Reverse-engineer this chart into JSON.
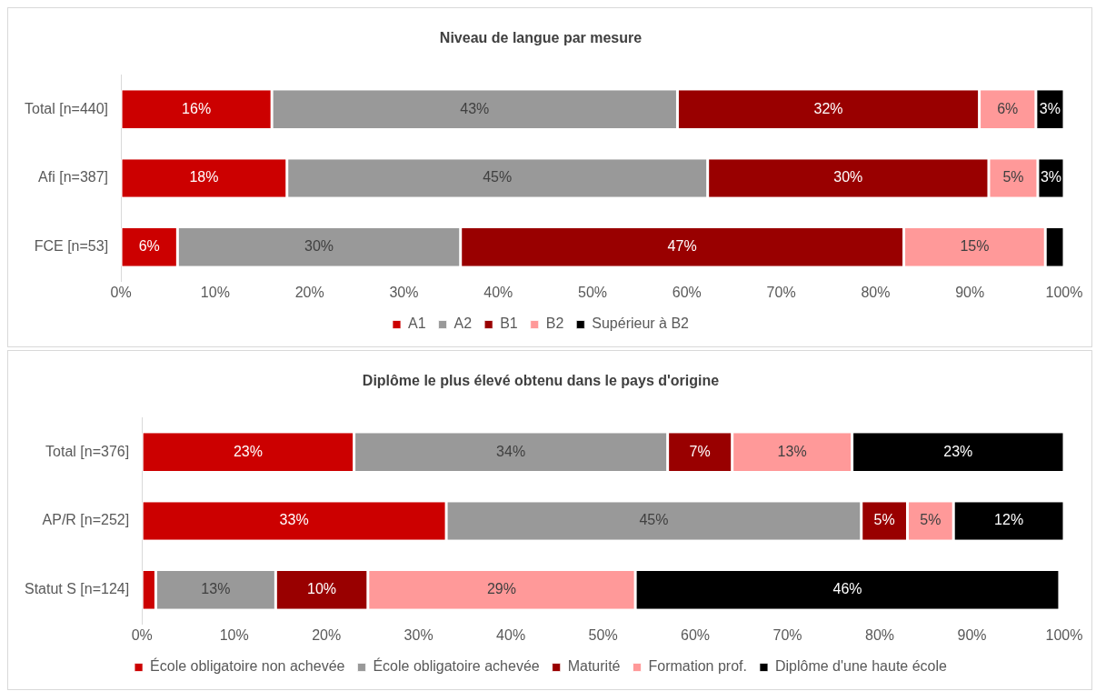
{
  "chart_data": [
    {
      "type": "bar",
      "orientation": "horizontal",
      "stacked": true,
      "title": "Niveau de langue par mesure",
      "categories": [
        "Total [n=440]",
        "Afi [n=387]",
        "FCE [n=53]"
      ],
      "xlim": [
        0,
        100
      ],
      "xticks": [
        {
          "value": 0,
          "label": "0%"
        },
        {
          "value": 10,
          "label": "10%"
        },
        {
          "value": 20,
          "label": "20%"
        },
        {
          "value": 30,
          "label": "30%"
        },
        {
          "value": 40,
          "label": "40%"
        },
        {
          "value": 50,
          "label": "50%"
        },
        {
          "value": 60,
          "label": "60%"
        },
        {
          "value": 70,
          "label": "70%"
        },
        {
          "value": 80,
          "label": "80%"
        },
        {
          "value": 90,
          "label": "90%"
        },
        {
          "value": 100,
          "label": "100%"
        }
      ],
      "grid": false,
      "legend": "bottom",
      "series": [
        {
          "name": "A1",
          "color": "#cc0000",
          "values": [
            16,
            17.6,
            6
          ],
          "value_labels": [
            "16%",
            "18%",
            "6%"
          ]
        },
        {
          "name": "A2",
          "color": "#999999",
          "values": [
            43,
            44.6,
            30
          ],
          "value_labels": [
            "43%",
            "45%",
            "30%"
          ]
        },
        {
          "name": "B1",
          "color": "#990000",
          "values": [
            32,
            29.8,
            47
          ],
          "value_labels": [
            "32%",
            "30%",
            "47%"
          ]
        },
        {
          "name": "B2",
          "color": "#ff9999",
          "values": [
            6,
            5.2,
            15
          ],
          "value_labels": [
            "6%",
            "5%",
            "15%"
          ]
        },
        {
          "name": "Supérieur à B2",
          "color": "#000000",
          "values": [
            3,
            2.8,
            2
          ],
          "value_labels": [
            "3%",
            "3%",
            null
          ]
        }
      ]
    },
    {
      "type": "bar",
      "orientation": "horizontal",
      "stacked": true,
      "title": "Diplôme le plus élevé obtenu dans le pays d'origine",
      "categories": [
        "Total [n=376]",
        "AP/R [n=252]",
        "Statut S [n=124]"
      ],
      "xlim": [
        0,
        100
      ],
      "xticks": [
        {
          "value": 0,
          "label": "0%"
        },
        {
          "value": 10,
          "label": "10%"
        },
        {
          "value": 20,
          "label": "20%"
        },
        {
          "value": 30,
          "label": "30%"
        },
        {
          "value": 40,
          "label": "40%"
        },
        {
          "value": 50,
          "label": "50%"
        },
        {
          "value": 60,
          "label": "60%"
        },
        {
          "value": 70,
          "label": "70%"
        },
        {
          "value": 80,
          "label": "80%"
        },
        {
          "value": 90,
          "label": "90%"
        },
        {
          "value": 100,
          "label": "100%"
        }
      ],
      "grid": false,
      "legend": "bottom",
      "series": [
        {
          "name": "École obligatoire non achevée",
          "color": "#cc0000",
          "values": [
            23,
            33,
            1.5
          ],
          "value_labels": [
            "23%",
            "33%",
            null
          ]
        },
        {
          "name": "École obligatoire achevée",
          "color": "#999999",
          "values": [
            34,
            45,
            13
          ],
          "value_labels": [
            "34%",
            "45%",
            "13%"
          ]
        },
        {
          "name": "Maturité",
          "color": "#990000",
          "values": [
            7,
            5,
            10
          ],
          "value_labels": [
            "7%",
            "5%",
            "10%"
          ]
        },
        {
          "name": "Formation prof.",
          "color": "#ff9999",
          "values": [
            13,
            5,
            29
          ],
          "value_labels": [
            "13%",
            "5%",
            "29%"
          ]
        },
        {
          "name": "Diplôme d'une haute école",
          "color": "#000000",
          "values": [
            23,
            12,
            46
          ],
          "value_labels": [
            "23%",
            "12%",
            "46%"
          ]
        }
      ]
    }
  ]
}
